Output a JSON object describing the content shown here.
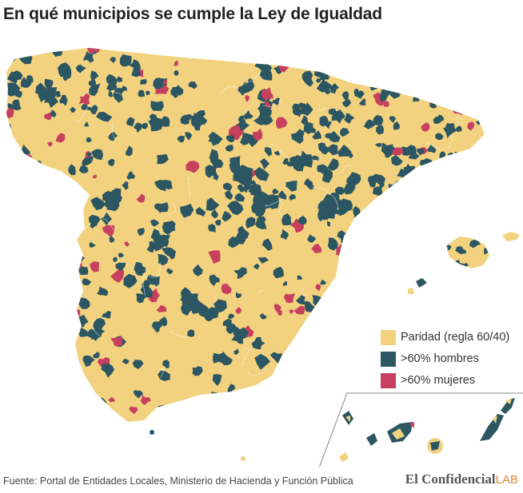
{
  "title": "En qué municipios se cumple la Ley de Igualdad",
  "legend": [
    {
      "label": "Paridad (regla 60/40)",
      "color": "#f2d27e"
    },
    {
      "label": ">60% hombres",
      "color": "#2b5662"
    },
    {
      "label": ">60% mujeres",
      "color": "#c7405f"
    }
  ],
  "source": "Fuente: Portal de Entidades Locales, Ministerio de Hacienda y Función Pública",
  "brand": {
    "name": "El Confidencial",
    "suffix": "LAB"
  },
  "map_layers": [
    "peninsula",
    "baleares",
    "ceuta",
    "melilla",
    "canarias"
  ]
}
